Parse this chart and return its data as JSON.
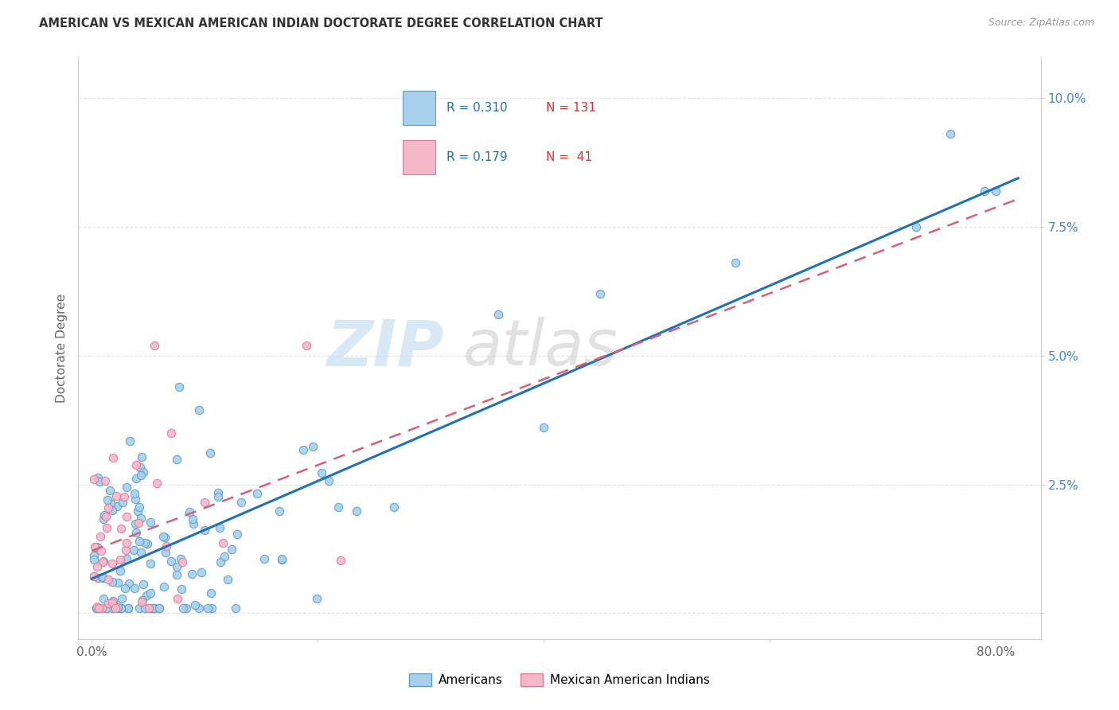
{
  "title": "AMERICAN VS MEXICAN AMERICAN INDIAN DOCTORATE DEGREE CORRELATION CHART",
  "source": "Source: ZipAtlas.com",
  "ylabel": "Doctorate Degree",
  "color_blue_fill": "#a8d0ea",
  "color_blue_edge": "#5b9ec9",
  "color_pink_fill": "#f5b8cb",
  "color_pink_edge": "#e07a9a",
  "color_blue_line": "#2171b5",
  "color_pink_line": "#d4607a",
  "watermark_zip_color": "#c8dff0",
  "watermark_atlas_color": "#d5d5d5",
  "legend_r1_color": "#2171b5",
  "legend_n1_color": "#e03030",
  "legend_r2_color": "#2171b5",
  "legend_n2_color": "#e03030",
  "title_color": "#333333",
  "source_color": "#999999",
  "ylabel_color": "#666666",
  "ytick_color": "#4488cc",
  "xtick_color": "#666666",
  "grid_color": "#dddddd",
  "spine_color": "#cccccc"
}
